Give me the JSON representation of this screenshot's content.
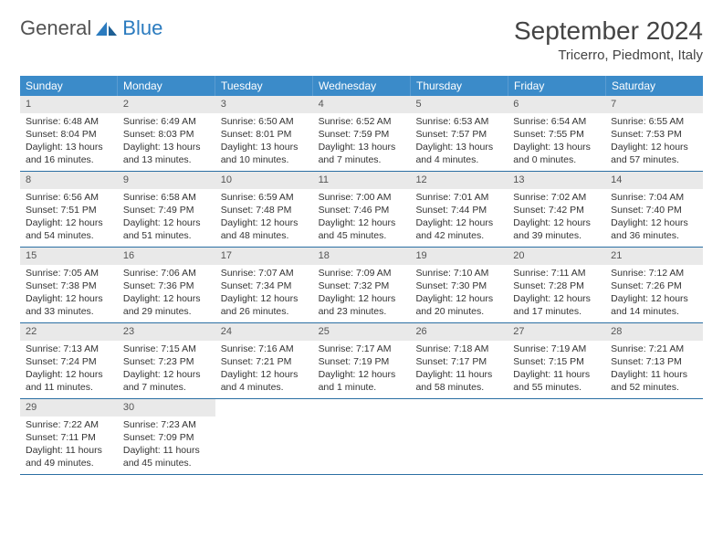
{
  "logo": {
    "text1": "General",
    "text2": "Blue"
  },
  "title": "September 2024",
  "location": "Tricerro, Piedmont, Italy",
  "colors": {
    "header_bg": "#3b8bc9",
    "header_text": "#ffffff",
    "daynum_bg": "#e9e9e9",
    "week_border": "#2b6fa3",
    "body_text": "#333333",
    "logo_gray": "#525252",
    "logo_blue": "#2b7bbf"
  },
  "days_of_week": [
    "Sunday",
    "Monday",
    "Tuesday",
    "Wednesday",
    "Thursday",
    "Friday",
    "Saturday"
  ],
  "weeks": [
    [
      {
        "n": "1",
        "sr": "Sunrise: 6:48 AM",
        "ss": "Sunset: 8:04 PM",
        "d1": "Daylight: 13 hours",
        "d2": "and 16 minutes."
      },
      {
        "n": "2",
        "sr": "Sunrise: 6:49 AM",
        "ss": "Sunset: 8:03 PM",
        "d1": "Daylight: 13 hours",
        "d2": "and 13 minutes."
      },
      {
        "n": "3",
        "sr": "Sunrise: 6:50 AM",
        "ss": "Sunset: 8:01 PM",
        "d1": "Daylight: 13 hours",
        "d2": "and 10 minutes."
      },
      {
        "n": "4",
        "sr": "Sunrise: 6:52 AM",
        "ss": "Sunset: 7:59 PM",
        "d1": "Daylight: 13 hours",
        "d2": "and 7 minutes."
      },
      {
        "n": "5",
        "sr": "Sunrise: 6:53 AM",
        "ss": "Sunset: 7:57 PM",
        "d1": "Daylight: 13 hours",
        "d2": "and 4 minutes."
      },
      {
        "n": "6",
        "sr": "Sunrise: 6:54 AM",
        "ss": "Sunset: 7:55 PM",
        "d1": "Daylight: 13 hours",
        "d2": "and 0 minutes."
      },
      {
        "n": "7",
        "sr": "Sunrise: 6:55 AM",
        "ss": "Sunset: 7:53 PM",
        "d1": "Daylight: 12 hours",
        "d2": "and 57 minutes."
      }
    ],
    [
      {
        "n": "8",
        "sr": "Sunrise: 6:56 AM",
        "ss": "Sunset: 7:51 PM",
        "d1": "Daylight: 12 hours",
        "d2": "and 54 minutes."
      },
      {
        "n": "9",
        "sr": "Sunrise: 6:58 AM",
        "ss": "Sunset: 7:49 PM",
        "d1": "Daylight: 12 hours",
        "d2": "and 51 minutes."
      },
      {
        "n": "10",
        "sr": "Sunrise: 6:59 AM",
        "ss": "Sunset: 7:48 PM",
        "d1": "Daylight: 12 hours",
        "d2": "and 48 minutes."
      },
      {
        "n": "11",
        "sr": "Sunrise: 7:00 AM",
        "ss": "Sunset: 7:46 PM",
        "d1": "Daylight: 12 hours",
        "d2": "and 45 minutes."
      },
      {
        "n": "12",
        "sr": "Sunrise: 7:01 AM",
        "ss": "Sunset: 7:44 PM",
        "d1": "Daylight: 12 hours",
        "d2": "and 42 minutes."
      },
      {
        "n": "13",
        "sr": "Sunrise: 7:02 AM",
        "ss": "Sunset: 7:42 PM",
        "d1": "Daylight: 12 hours",
        "d2": "and 39 minutes."
      },
      {
        "n": "14",
        "sr": "Sunrise: 7:04 AM",
        "ss": "Sunset: 7:40 PM",
        "d1": "Daylight: 12 hours",
        "d2": "and 36 minutes."
      }
    ],
    [
      {
        "n": "15",
        "sr": "Sunrise: 7:05 AM",
        "ss": "Sunset: 7:38 PM",
        "d1": "Daylight: 12 hours",
        "d2": "and 33 minutes."
      },
      {
        "n": "16",
        "sr": "Sunrise: 7:06 AM",
        "ss": "Sunset: 7:36 PM",
        "d1": "Daylight: 12 hours",
        "d2": "and 29 minutes."
      },
      {
        "n": "17",
        "sr": "Sunrise: 7:07 AM",
        "ss": "Sunset: 7:34 PM",
        "d1": "Daylight: 12 hours",
        "d2": "and 26 minutes."
      },
      {
        "n": "18",
        "sr": "Sunrise: 7:09 AM",
        "ss": "Sunset: 7:32 PM",
        "d1": "Daylight: 12 hours",
        "d2": "and 23 minutes."
      },
      {
        "n": "19",
        "sr": "Sunrise: 7:10 AM",
        "ss": "Sunset: 7:30 PM",
        "d1": "Daylight: 12 hours",
        "d2": "and 20 minutes."
      },
      {
        "n": "20",
        "sr": "Sunrise: 7:11 AM",
        "ss": "Sunset: 7:28 PM",
        "d1": "Daylight: 12 hours",
        "d2": "and 17 minutes."
      },
      {
        "n": "21",
        "sr": "Sunrise: 7:12 AM",
        "ss": "Sunset: 7:26 PM",
        "d1": "Daylight: 12 hours",
        "d2": "and 14 minutes."
      }
    ],
    [
      {
        "n": "22",
        "sr": "Sunrise: 7:13 AM",
        "ss": "Sunset: 7:24 PM",
        "d1": "Daylight: 12 hours",
        "d2": "and 11 minutes."
      },
      {
        "n": "23",
        "sr": "Sunrise: 7:15 AM",
        "ss": "Sunset: 7:23 PM",
        "d1": "Daylight: 12 hours",
        "d2": "and 7 minutes."
      },
      {
        "n": "24",
        "sr": "Sunrise: 7:16 AM",
        "ss": "Sunset: 7:21 PM",
        "d1": "Daylight: 12 hours",
        "d2": "and 4 minutes."
      },
      {
        "n": "25",
        "sr": "Sunrise: 7:17 AM",
        "ss": "Sunset: 7:19 PM",
        "d1": "Daylight: 12 hours",
        "d2": "and 1 minute."
      },
      {
        "n": "26",
        "sr": "Sunrise: 7:18 AM",
        "ss": "Sunset: 7:17 PM",
        "d1": "Daylight: 11 hours",
        "d2": "and 58 minutes."
      },
      {
        "n": "27",
        "sr": "Sunrise: 7:19 AM",
        "ss": "Sunset: 7:15 PM",
        "d1": "Daylight: 11 hours",
        "d2": "and 55 minutes."
      },
      {
        "n": "28",
        "sr": "Sunrise: 7:21 AM",
        "ss": "Sunset: 7:13 PM",
        "d1": "Daylight: 11 hours",
        "d2": "and 52 minutes."
      }
    ],
    [
      {
        "n": "29",
        "sr": "Sunrise: 7:22 AM",
        "ss": "Sunset: 7:11 PM",
        "d1": "Daylight: 11 hours",
        "d2": "and 49 minutes."
      },
      {
        "n": "30",
        "sr": "Sunrise: 7:23 AM",
        "ss": "Sunset: 7:09 PM",
        "d1": "Daylight: 11 hours",
        "d2": "and 45 minutes."
      },
      null,
      null,
      null,
      null,
      null
    ]
  ]
}
